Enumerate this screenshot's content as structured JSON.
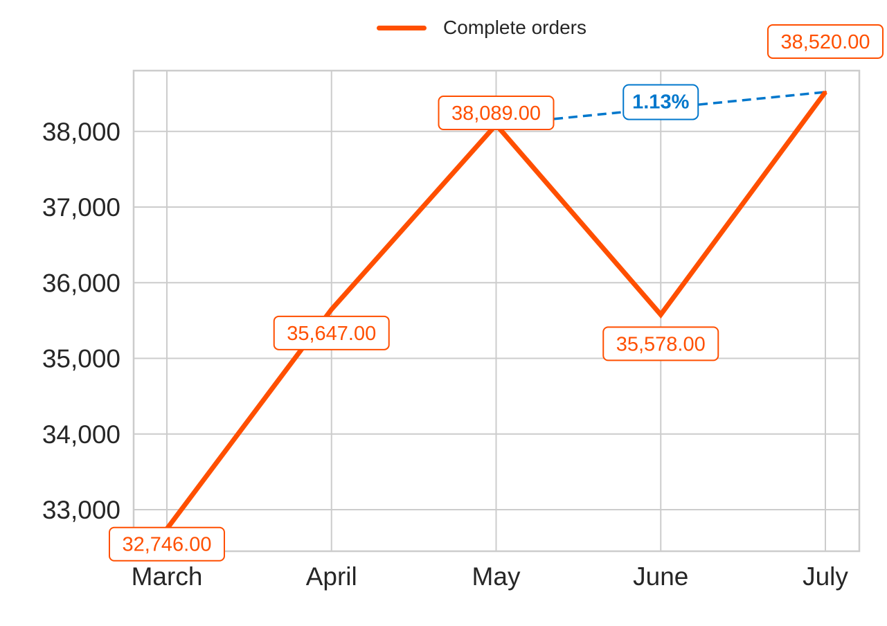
{
  "colors": {
    "series": "#ff4f00",
    "annotation": "#0077cc",
    "grid": "#cccccc",
    "text": "#262626",
    "background": "#ffffff"
  },
  "legend": {
    "position": "top-center",
    "label": "Complete orders"
  },
  "chart_data": {
    "type": "line",
    "title": "",
    "xlabel": "",
    "ylabel": "",
    "categories": [
      "March",
      "April",
      "May",
      "June",
      "July"
    ],
    "ylim": [
      32500,
      38800
    ],
    "yticks": [
      33000,
      34000,
      35000,
      36000,
      37000,
      38000
    ],
    "ytick_labels": [
      "33,000",
      "34,000",
      "35,000",
      "36,000",
      "37,000",
      "38,000"
    ],
    "grid": true,
    "series": [
      {
        "name": "Complete orders",
        "values": [
          32746,
          35647,
          38089,
          35578,
          38520
        ],
        "labels": [
          "32,746.00",
          "35,647.00",
          "38,089.00",
          "35,578.00",
          "38,520.00"
        ]
      }
    ],
    "annotations": [
      {
        "type": "dashed-connector",
        "from_category": "May",
        "to_category": "July",
        "from_value": 38089,
        "to_value": 38520,
        "label": "1.13%"
      }
    ]
  }
}
